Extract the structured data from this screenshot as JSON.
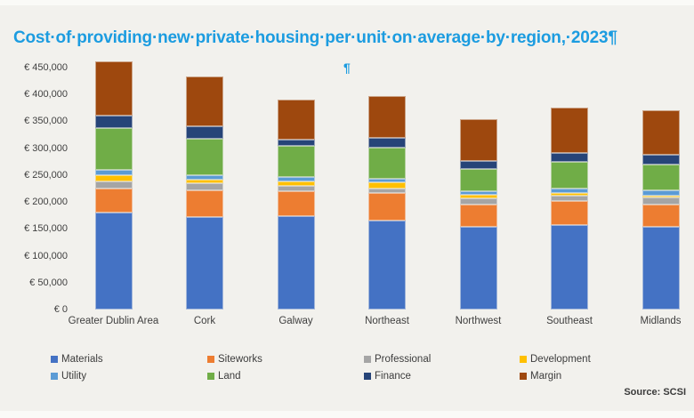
{
  "title": {
    "text": "Cost of providing new private housing per unit on average by region, 2023",
    "rendered": "Cost·of·providing·new·private·housing·per·unit·on·average·by·region,·2023¶",
    "color": "#1c9ce0"
  },
  "formatting_marks": {
    "stray_pilcrow": "¶"
  },
  "source": "Source: SCSI",
  "chart_data": {
    "type": "bar",
    "stacked": true,
    "title": "Cost of providing new private housing per unit on average by region, 2023",
    "xlabel": "",
    "ylabel": "",
    "grid": false,
    "legend_position": "bottom",
    "y_axis": {
      "min": 0,
      "max": 450000,
      "step": 50000,
      "tick_prefix": "€ ",
      "ylim": [
        0,
        450000
      ]
    },
    "categories": [
      "Greater Dublin Area",
      "Cork",
      "Galway",
      "Northeast",
      "Northwest",
      "Southeast",
      "Midlands"
    ],
    "series": [
      {
        "name": "Materials",
        "color": "#4472c4",
        "values": [
          181000,
          172000,
          174000,
          165000,
          154000,
          157000,
          154000
        ]
      },
      {
        "name": "Siteworks",
        "color": "#ed7d31",
        "values": [
          44000,
          49000,
          46000,
          51000,
          41000,
          45000,
          42000
        ]
      },
      {
        "name": "Professional",
        "color": "#a5a5a5",
        "values": [
          13000,
          14000,
          10000,
          9000,
          11000,
          9000,
          12000
        ]
      },
      {
        "name": "Development",
        "color": "#ffc000",
        "values": [
          11000,
          7000,
          8000,
          11000,
          7000,
          5000,
          4000
        ]
      },
      {
        "name": "Utility",
        "color": "#5b9bd5",
        "values": [
          10000,
          7000,
          9000,
          7000,
          7000,
          9000,
          10000
        ]
      },
      {
        "name": "Land",
        "color": "#70ad47",
        "values": [
          79000,
          68000,
          58000,
          58000,
          42000,
          49000,
          48000
        ]
      },
      {
        "name": "Finance",
        "color": "#264478",
        "values": [
          22000,
          23000,
          11000,
          18000,
          14000,
          17000,
          18000
        ]
      },
      {
        "name": "Margin",
        "color": "#9e480e",
        "values": [
          101000,
          93000,
          74000,
          78000,
          78000,
          84000,
          83000
        ]
      }
    ],
    "totals": [
      461000,
      433000,
      390000,
      397000,
      354000,
      375000,
      371000
    ]
  }
}
